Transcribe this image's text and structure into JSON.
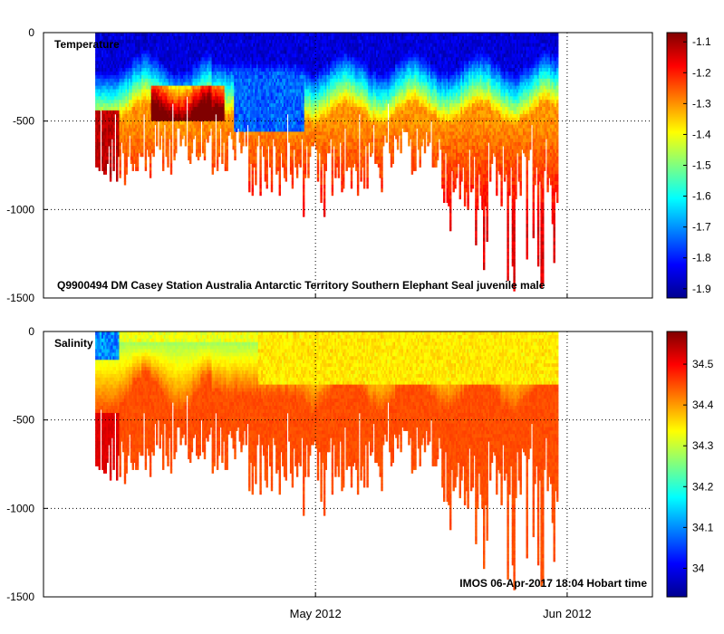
{
  "chart_data": [
    {
      "type": "heatmap",
      "variable": "Temperature",
      "label": "Temperature",
      "subtitle": "Q9900494 DM Casey  Station  Australia  Antarctic  Territory  Southern  Elephant  Seal juvenile male",
      "ylim": [
        -1500,
        0
      ],
      "yticks": [
        0,
        -500,
        -1000,
        -1500
      ],
      "ytick_labels": [
        "0",
        "-500",
        "-1000",
        "-1500"
      ],
      "colorbar": {
        "range": [
          -1.93,
          -1.07
        ],
        "ticks": [
          -1.1,
          -1.2,
          -1.3,
          -1.4,
          -1.5,
          -1.6,
          -1.7,
          -1.8,
          -1.9
        ],
        "tick_labels": [
          "-1.1",
          "-1.2",
          "-1.3",
          "-1.4",
          "-1.5",
          "-1.6",
          "-1.7",
          "-1.8",
          "-1.9"
        ]
      },
      "grid": true
    },
    {
      "type": "heatmap",
      "variable": "Salinity",
      "label": "Salinity",
      "footer": "IMOS 06-Apr-2017 18:04 Hobart time",
      "ylim": [
        -1500,
        0
      ],
      "yticks": [
        0,
        -500,
        -1000,
        -1500
      ],
      "ytick_labels": [
        "0",
        "-500",
        "-1000",
        "-1500"
      ],
      "colorbar": {
        "range": [
          33.93,
          34.58
        ],
        "ticks": [
          34.5,
          34.4,
          34.3,
          34.2,
          34.1,
          34.0
        ],
        "tick_labels": [
          "34.5",
          "34.4",
          "34.3",
          "34.2",
          "34.1",
          "34"
        ]
      },
      "grid": true
    }
  ],
  "x_axis": {
    "range_days": [
      0,
      75
    ],
    "ticks": [
      {
        "label": "May 2012",
        "day": 33.5
      },
      {
        "label": "Jun 2012",
        "day": 64.5
      }
    ],
    "first_profile_day": 6.5,
    "last_profile_day": 63.3
  }
}
